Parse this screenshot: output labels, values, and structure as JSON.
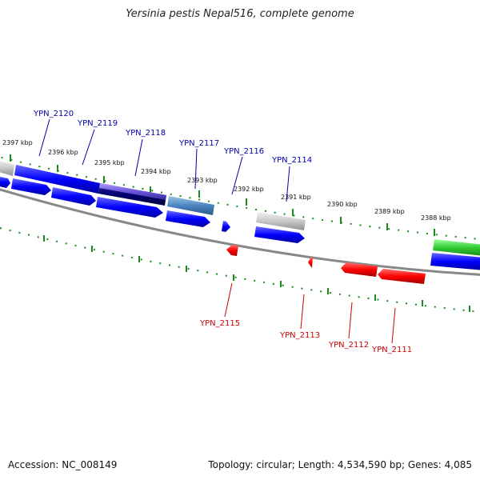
{
  "header": {
    "title": "Yersinia pestis Nepal516, complete genome"
  },
  "footer": {
    "accession": "Accession: NC_008149",
    "summary": "Topology: circular; Length: 4,534,590 bp; Genes: 4,085"
  },
  "kbp_labels": [
    "2397 kbp",
    "2396 kbp",
    "2395 kbp",
    "2394 kbp",
    "2393 kbp",
    "2392 kbp",
    "2391 kbp",
    "2390 kbp",
    "2389 kbp",
    "2388 kbp"
  ],
  "forward_genes": [
    "YPN_2120",
    "YPN_2119",
    "YPN_2118",
    "YPN_2117",
    "YPN_2116",
    "YPN_2114"
  ],
  "reverse_genes": [
    "YPN_2115",
    "YPN_2113",
    "YPN_2112",
    "YPN_2111"
  ],
  "colors": {
    "forward": "#0000ff",
    "reverse": "#ff0000",
    "backbone": "#888888",
    "tick": "#1a8a1a",
    "label_forward": "#0000aa",
    "label_reverse": "#cc0000"
  }
}
